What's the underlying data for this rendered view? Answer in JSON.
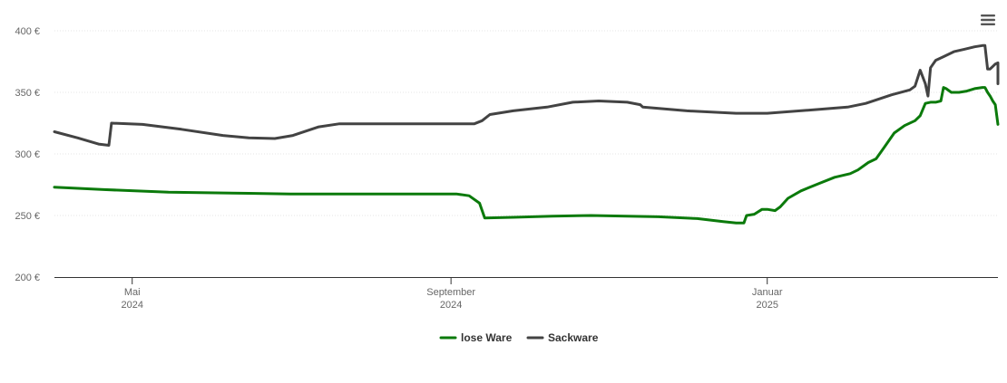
{
  "chart_data": {
    "type": "line",
    "title": "",
    "xlabel": "",
    "ylabel": "",
    "ylim": [
      200,
      400
    ],
    "yticks": [
      "200 €",
      "250 €",
      "300 €",
      "350 €",
      "400 €"
    ],
    "ytick_values": [
      200,
      250,
      300,
      350,
      400
    ],
    "xlim": [
      "2024-04-01",
      "2025-03-31"
    ],
    "xticks": [
      {
        "date": "2024-05-01",
        "month": "Mai",
        "year": "2024"
      },
      {
        "date": "2024-09-01",
        "month": "September",
        "year": "2024"
      },
      {
        "date": "2025-01-01",
        "month": "Januar",
        "year": "2025"
      }
    ],
    "grid": "horizontal",
    "legend": "bottom-center",
    "series": [
      {
        "name": "lose Ware",
        "color": "#0b7a0b",
        "points": [
          [
            "2024-04-01",
            273
          ],
          [
            "2024-04-20",
            271
          ],
          [
            "2024-05-15",
            269
          ],
          [
            "2024-06-15",
            268
          ],
          [
            "2024-07-01",
            267.5
          ],
          [
            "2024-08-15",
            267.5
          ],
          [
            "2024-09-03",
            267.5
          ],
          [
            "2024-09-08",
            266
          ],
          [
            "2024-09-12",
            260
          ],
          [
            "2024-09-14",
            248
          ],
          [
            "2024-09-25",
            248.5
          ],
          [
            "2024-10-10",
            249.5
          ],
          [
            "2024-10-25",
            250
          ],
          [
            "2024-11-08",
            249.5
          ],
          [
            "2024-11-20",
            249
          ],
          [
            "2024-12-05",
            247.5
          ],
          [
            "2024-12-15",
            245
          ],
          [
            "2024-12-20",
            244
          ],
          [
            "2024-12-23",
            244
          ],
          [
            "2024-12-24",
            250
          ],
          [
            "2024-12-27",
            251
          ],
          [
            "2024-12-30",
            255
          ],
          [
            "2025-01-01",
            255
          ],
          [
            "2025-01-04",
            254
          ],
          [
            "2025-01-06",
            257
          ],
          [
            "2025-01-09",
            264
          ],
          [
            "2025-01-14",
            270
          ],
          [
            "2025-01-21",
            276
          ],
          [
            "2025-01-27",
            281
          ],
          [
            "2025-02-02",
            284
          ],
          [
            "2025-02-05",
            287
          ],
          [
            "2025-02-09",
            293
          ],
          [
            "2025-02-12",
            296
          ],
          [
            "2025-02-15",
            305
          ],
          [
            "2025-02-19",
            317
          ],
          [
            "2025-02-23",
            323
          ],
          [
            "2025-02-27",
            327
          ],
          [
            "2025-03-01",
            331
          ],
          [
            "2025-03-03",
            341
          ],
          [
            "2025-03-05",
            342
          ],
          [
            "2025-03-07",
            342
          ],
          [
            "2025-03-09",
            343
          ],
          [
            "2025-03-10",
            354
          ],
          [
            "2025-03-11",
            353
          ],
          [
            "2025-03-13",
            350
          ],
          [
            "2025-03-16",
            350
          ],
          [
            "2025-03-19",
            351
          ],
          [
            "2025-03-22",
            353
          ],
          [
            "2025-03-25",
            354
          ],
          [
            "2025-03-26",
            354
          ],
          [
            "2025-03-27",
            350
          ],
          [
            "2025-03-28",
            347
          ],
          [
            "2025-03-29",
            343
          ],
          [
            "2025-03-30",
            340
          ],
          [
            "2025-03-31",
            324
          ]
        ]
      },
      {
        "name": "Sackware",
        "color": "#434343",
        "points": [
          [
            "2024-04-01",
            318
          ],
          [
            "2024-04-10",
            313
          ],
          [
            "2024-04-18",
            308
          ],
          [
            "2024-04-22",
            307
          ],
          [
            "2024-04-23",
            325
          ],
          [
            "2024-05-05",
            324
          ],
          [
            "2024-05-20",
            320
          ],
          [
            "2024-06-05",
            315
          ],
          [
            "2024-06-15",
            313
          ],
          [
            "2024-06-25",
            312.5
          ],
          [
            "2024-07-02",
            315
          ],
          [
            "2024-07-12",
            322
          ],
          [
            "2024-07-20",
            324.5
          ],
          [
            "2024-08-15",
            324.5
          ],
          [
            "2024-09-01",
            324.5
          ],
          [
            "2024-09-10",
            324.5
          ],
          [
            "2024-09-13",
            327
          ],
          [
            "2024-09-16",
            332
          ],
          [
            "2024-09-25",
            335
          ],
          [
            "2024-10-08",
            338
          ],
          [
            "2024-10-18",
            342
          ],
          [
            "2024-10-28",
            343
          ],
          [
            "2024-11-08",
            342
          ],
          [
            "2024-11-13",
            340
          ],
          [
            "2024-11-14",
            338
          ],
          [
            "2024-12-01",
            335
          ],
          [
            "2024-12-20",
            333
          ],
          [
            "2025-01-01",
            333
          ],
          [
            "2025-01-20",
            336
          ],
          [
            "2025-02-01",
            338
          ],
          [
            "2025-02-08",
            341
          ],
          [
            "2025-02-18",
            348
          ],
          [
            "2025-02-25",
            352
          ],
          [
            "2025-02-27",
            355
          ],
          [
            "2025-03-01",
            368
          ],
          [
            "2025-03-03",
            357
          ],
          [
            "2025-03-04",
            347
          ],
          [
            "2025-03-05",
            370
          ],
          [
            "2025-03-07",
            376
          ],
          [
            "2025-03-10",
            379
          ],
          [
            "2025-03-14",
            383
          ],
          [
            "2025-03-18",
            385
          ],
          [
            "2025-03-22",
            387
          ],
          [
            "2025-03-25",
            388
          ],
          [
            "2025-03-26",
            388
          ],
          [
            "2025-03-27",
            369
          ],
          [
            "2025-03-28",
            369
          ],
          [
            "2025-03-29",
            371
          ],
          [
            "2025-03-30",
            373
          ],
          [
            "2025-03-31",
            374
          ],
          [
            "2025-03-31",
            357
          ]
        ]
      }
    ]
  },
  "menu": {
    "icon": "hamburger-icon"
  }
}
